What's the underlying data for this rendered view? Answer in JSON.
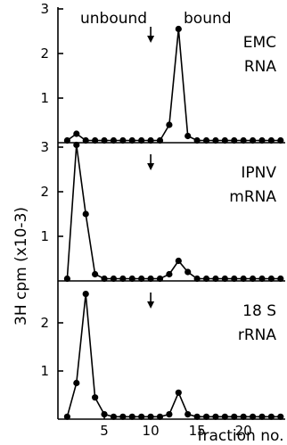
{
  "chart_data": [
    {
      "type": "line",
      "panel_labels": [
        "EMC",
        "RNA"
      ],
      "header": {
        "unbound": "unbound",
        "bound": "bound"
      },
      "arrow_x": 10,
      "x": [
        1,
        2,
        3,
        4,
        5,
        6,
        7,
        8,
        9,
        10,
        11,
        12,
        13,
        14,
        15,
        16,
        17,
        18,
        19,
        20,
        21,
        22,
        23,
        24
      ],
      "y": [
        0.05,
        0.2,
        0.05,
        0.05,
        0.05,
        0.05,
        0.05,
        0.05,
        0.05,
        0.05,
        0.05,
        0.4,
        2.55,
        0.15,
        0.05,
        0.05,
        0.05,
        0.05,
        0.05,
        0.05,
        0.05,
        0.05,
        0.05,
        0.05
      ],
      "yticks": [
        1,
        2,
        3
      ],
      "ylim": [
        0,
        3.5
      ]
    },
    {
      "type": "line",
      "panel_labels": [
        "IPNV",
        "mRNA"
      ],
      "arrow_x": 10,
      "x": [
        1,
        2,
        3,
        4,
        5,
        6,
        7,
        8,
        9,
        10,
        11,
        12,
        13,
        14,
        15,
        16,
        17,
        18,
        19,
        20,
        21,
        22,
        23,
        24
      ],
      "y": [
        0.05,
        3.05,
        1.5,
        0.15,
        0.05,
        0.05,
        0.05,
        0.05,
        0.05,
        0.05,
        0.05,
        0.15,
        0.45,
        0.2,
        0.05,
        0.05,
        0.05,
        0.05,
        0.05,
        0.05,
        0.05,
        0.05,
        0.05,
        0.05
      ],
      "yticks": [
        1,
        2,
        3
      ],
      "ylim": [
        0,
        3.5
      ]
    },
    {
      "type": "line",
      "panel_labels": [
        "18 S",
        "rRNA"
      ],
      "arrow_x": 10,
      "x": [
        1,
        2,
        3,
        4,
        5,
        6,
        7,
        8,
        9,
        10,
        11,
        12,
        13,
        14,
        15,
        16,
        17,
        18,
        19,
        20,
        21,
        22,
        23,
        24
      ],
      "y": [
        0.05,
        0.75,
        2.6,
        0.45,
        0.1,
        0.05,
        0.05,
        0.05,
        0.05,
        0.05,
        0.05,
        0.1,
        0.55,
        0.1,
        0.05,
        0.05,
        0.05,
        0.05,
        0.05,
        0.05,
        0.05,
        0.05,
        0.05,
        0.05
      ],
      "yticks": [
        1,
        2
      ],
      "ylim": [
        0,
        3.0
      ]
    }
  ],
  "axes": {
    "ylabel": "3H cpm (x10-3)",
    "xlabel": "fraction no.",
    "xticks": [
      5,
      10,
      15,
      20
    ],
    "xlim": [
      0,
      24.5
    ]
  }
}
